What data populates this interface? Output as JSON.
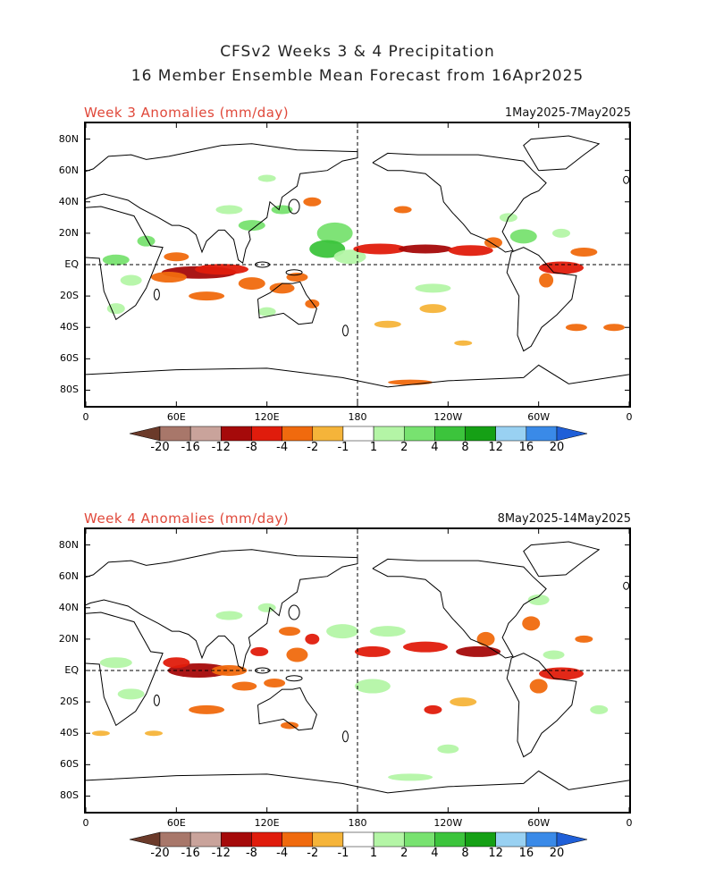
{
  "title_line1": "CFSv2 Weeks 3 & 4 Precipitation",
  "title_line2": "16 Member Ensemble Mean Forecast from 16Apr2025",
  "panels": [
    {
      "label": "Week 3 Anomalies (mm/day)",
      "date": "1May2025-7May2025"
    },
    {
      "label": "Week 4 Anomalies (mm/day)",
      "date": "8May2025-14May2025"
    }
  ],
  "lat_labels": [
    "80N",
    "60N",
    "40N",
    "20N",
    "EQ",
    "20S",
    "40S",
    "60S",
    "80S"
  ],
  "lon_labels": [
    "0",
    "60E",
    "120E",
    "180",
    "120W",
    "60W",
    "0"
  ],
  "colorbar": {
    "labels": [
      "-20",
      "-16",
      "-12",
      "-8",
      "-4",
      "-2",
      "-1",
      "1",
      "2",
      "4",
      "8",
      "12",
      "16",
      "20"
    ],
    "colors": [
      "#6b3a2a",
      "#a8776a",
      "#c9a39b",
      "#a50a0a",
      "#e01c0c",
      "#f06a0e",
      "#f5b43a",
      "#ffffff",
      "#b4f5a6",
      "#78e270",
      "#3cc43c",
      "#15a015",
      "#99d1f2",
      "#3a8ae8",
      "#1f5fd8"
    ]
  }
}
